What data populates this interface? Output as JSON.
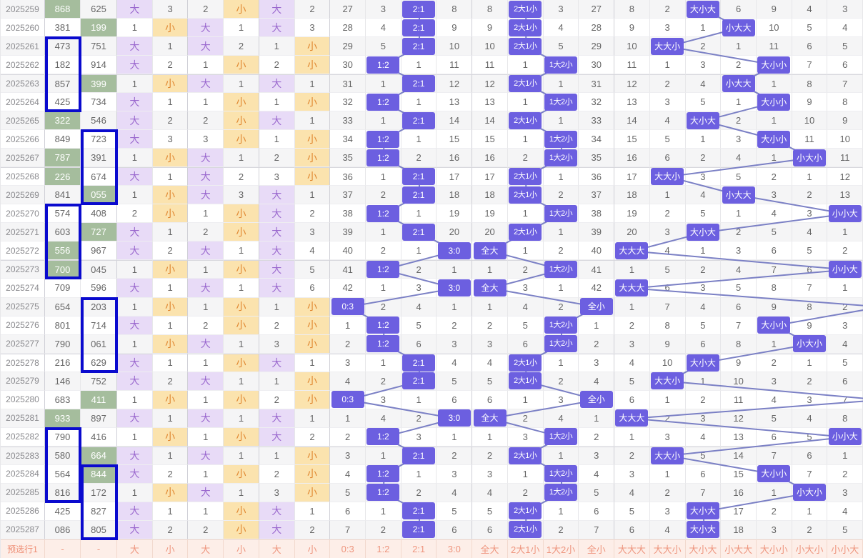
{
  "colors": {
    "hit_pill": "#6c5fe0",
    "big_cell_bg": "#e8dbf7",
    "big_text": "#9a68ce",
    "small_cell_bg": "#fbe3ae",
    "small_text": "#e0862f",
    "green_cell_bg": "#a5bd9d",
    "selection_border": "#0a0ace",
    "connector_line": "#7b80c5",
    "prediction_row_bg": "#fdeee8",
    "prediction_row_text": "#ee957e",
    "stripe_bg": "#f5f5f6"
  },
  "table": {
    "sections": {
      "six_labels": [
        "大",
        "小",
        "大",
        "小",
        "大",
        "小"
      ],
      "ratio_labels": [
        "0:3",
        "1:2",
        "2:1",
        "3:0"
      ],
      "group_labels": [
        "全大",
        "2大1小",
        "1大2小",
        "全小"
      ],
      "pattern_labels": [
        "大大大",
        "大大小",
        "大小大",
        "小大大",
        "大小小",
        "小大小",
        "小小大"
      ]
    },
    "prediction_row": {
      "label": "预选行1",
      "n1": "-",
      "n2": "-"
    },
    "highlight_boxes": [
      {
        "col": "n1",
        "from": 2,
        "to": 5
      },
      {
        "col": "n2",
        "from": 7,
        "to": 10
      },
      {
        "col": "n1",
        "from": 11,
        "to": 14
      },
      {
        "col": "n2",
        "from": 16,
        "to": 19
      },
      {
        "col": "n1",
        "from": 23,
        "to": 26
      },
      {
        "col": "n2",
        "from": 25,
        "to": 28
      }
    ],
    "rows": [
      {
        "p": "2025259",
        "n1": "868",
        "h1": true,
        "n2": "625",
        "h2": false,
        "six": [
          "大",
          3,
          2,
          "小",
          "大",
          2
        ],
        "r": [
          27,
          3,
          null,
          8
        ],
        "rh": 2,
        "g": [
          8,
          null,
          3,
          27
        ],
        "gh": 1,
        "pt": [
          8,
          2,
          null,
          6,
          9,
          4,
          3
        ],
        "ph": 2
      },
      {
        "p": "2025260",
        "n1": "381",
        "h1": false,
        "n2": "199",
        "h2": true,
        "six": [
          1,
          "小",
          "大",
          1,
          "大",
          3
        ],
        "r": [
          28,
          4,
          null,
          9
        ],
        "rh": 2,
        "g": [
          9,
          null,
          4,
          28
        ],
        "gh": 1,
        "pt": [
          9,
          3,
          1,
          null,
          10,
          5,
          4
        ],
        "ph": 3
      },
      {
        "p": "2025261",
        "n1": "473",
        "h1": false,
        "n2": "751",
        "h2": false,
        "six": [
          "大",
          1,
          "大",
          2,
          1,
          "小"
        ],
        "r": [
          29,
          5,
          null,
          10
        ],
        "rh": 2,
        "g": [
          10,
          null,
          5,
          29
        ],
        "gh": 1,
        "pt": [
          10,
          null,
          2,
          1,
          11,
          6,
          5
        ],
        "ph": 1
      },
      {
        "p": "2025262",
        "n1": "182",
        "h1": false,
        "n2": "914",
        "h2": false,
        "six": [
          "大",
          2,
          1,
          "小",
          2,
          "小"
        ],
        "r": [
          30,
          null,
          1,
          11
        ],
        "rh": 1,
        "g": [
          11,
          1,
          null,
          30
        ],
        "gh": 2,
        "pt": [
          11,
          1,
          3,
          2,
          null,
          7,
          6
        ],
        "ph": 4
      },
      {
        "p": "2025263",
        "n1": "857",
        "h1": false,
        "n2": "399",
        "h2": true,
        "six": [
          1,
          "小",
          "大",
          1,
          "大",
          1
        ],
        "r": [
          31,
          1,
          null,
          12
        ],
        "rh": 2,
        "g": [
          12,
          null,
          1,
          31
        ],
        "gh": 1,
        "pt": [
          12,
          2,
          4,
          null,
          1,
          8,
          7
        ],
        "ph": 3
      },
      {
        "p": "2025264",
        "n1": "425",
        "h1": false,
        "n2": "734",
        "h2": false,
        "six": [
          "大",
          1,
          1,
          "小",
          1,
          "小"
        ],
        "r": [
          32,
          null,
          1,
          13
        ],
        "rh": 1,
        "g": [
          13,
          1,
          null,
          32
        ],
        "gh": 2,
        "pt": [
          13,
          3,
          5,
          1,
          null,
          9,
          8
        ],
        "ph": 4
      },
      {
        "p": "2025265",
        "n1": "322",
        "h1": true,
        "n2": "546",
        "h2": false,
        "six": [
          "大",
          2,
          2,
          "小",
          "大",
          1
        ],
        "r": [
          33,
          1,
          null,
          14
        ],
        "rh": 2,
        "g": [
          14,
          null,
          1,
          33
        ],
        "gh": 1,
        "pt": [
          14,
          4,
          null,
          2,
          1,
          10,
          9
        ],
        "ph": 2
      },
      {
        "p": "2025266",
        "n1": "849",
        "h1": false,
        "n2": "723",
        "h2": false,
        "six": [
          "大",
          3,
          3,
          "小",
          1,
          "小"
        ],
        "r": [
          34,
          null,
          1,
          15
        ],
        "rh": 1,
        "g": [
          15,
          1,
          null,
          34
        ],
        "gh": 2,
        "pt": [
          15,
          5,
          1,
          3,
          null,
          11,
          10
        ],
        "ph": 4
      },
      {
        "p": "2025267",
        "n1": "787",
        "h1": true,
        "n2": "391",
        "h2": false,
        "six": [
          1,
          "小",
          "大",
          1,
          2,
          "小"
        ],
        "r": [
          35,
          null,
          2,
          16
        ],
        "rh": 1,
        "g": [
          16,
          2,
          null,
          35
        ],
        "gh": 2,
        "pt": [
          16,
          6,
          2,
          4,
          1,
          null,
          11
        ],
        "ph": 5
      },
      {
        "p": "2025268",
        "n1": "226",
        "h1": true,
        "n2": "674",
        "h2": false,
        "six": [
          "大",
          1,
          "大",
          2,
          3,
          "小"
        ],
        "r": [
          36,
          1,
          null,
          17
        ],
        "rh": 2,
        "g": [
          17,
          null,
          1,
          36
        ],
        "gh": 1,
        "pt": [
          17,
          null,
          3,
          5,
          2,
          1,
          12
        ],
        "ph": 1
      },
      {
        "p": "2025269",
        "n1": "841",
        "h1": false,
        "n2": "055",
        "h2": true,
        "six": [
          1,
          "小",
          "大",
          3,
          "大",
          1
        ],
        "r": [
          37,
          2,
          null,
          18
        ],
        "rh": 2,
        "g": [
          18,
          null,
          2,
          37
        ],
        "gh": 1,
        "pt": [
          18,
          1,
          4,
          null,
          3,
          2,
          13
        ],
        "ph": 3
      },
      {
        "p": "2025270",
        "n1": "574",
        "h1": false,
        "n2": "408",
        "h2": false,
        "six": [
          2,
          "小",
          1,
          "小",
          "大",
          2
        ],
        "r": [
          38,
          null,
          1,
          19
        ],
        "rh": 1,
        "g": [
          19,
          1,
          null,
          38
        ],
        "gh": 2,
        "pt": [
          19,
          2,
          5,
          1,
          4,
          3,
          null
        ],
        "ph": 6
      },
      {
        "p": "2025271",
        "n1": "603",
        "h1": false,
        "n2": "727",
        "h2": true,
        "six": [
          "大",
          1,
          2,
          "小",
          "大",
          3
        ],
        "r": [
          39,
          1,
          null,
          20
        ],
        "rh": 2,
        "g": [
          20,
          null,
          1,
          39
        ],
        "gh": 1,
        "pt": [
          20,
          3,
          null,
          2,
          5,
          4,
          1
        ],
        "ph": 2
      },
      {
        "p": "2025272",
        "n1": "556",
        "h1": true,
        "n2": "967",
        "h2": false,
        "six": [
          "大",
          2,
          "大",
          1,
          "大",
          4
        ],
        "r": [
          40,
          2,
          1,
          null
        ],
        "rh": 3,
        "g": [
          null,
          1,
          2,
          40
        ],
        "gh": 0,
        "pt": [
          null,
          4,
          1,
          3,
          6,
          5,
          2
        ],
        "ph": 0
      },
      {
        "p": "2025273",
        "n1": "700",
        "h1": true,
        "n2": "045",
        "h2": false,
        "six": [
          1,
          "小",
          1,
          "小",
          "大",
          5
        ],
        "r": [
          41,
          null,
          2,
          1
        ],
        "rh": 1,
        "g": [
          1,
          2,
          null,
          41
        ],
        "gh": 2,
        "pt": [
          1,
          5,
          2,
          4,
          7,
          6,
          null
        ],
        "ph": 6
      },
      {
        "p": "2025274",
        "n1": "709",
        "h1": false,
        "n2": "596",
        "h2": false,
        "six": [
          "大",
          1,
          "大",
          1,
          "大",
          6
        ],
        "r": [
          42,
          1,
          3,
          null
        ],
        "rh": 3,
        "g": [
          null,
          3,
          1,
          42
        ],
        "gh": 0,
        "pt": [
          null,
          6,
          3,
          5,
          8,
          7,
          1
        ],
        "ph": 0
      },
      {
        "p": "2025275",
        "n1": "654",
        "h1": false,
        "n2": "203",
        "h2": false,
        "six": [
          1,
          "小",
          1,
          "小",
          1,
          "小"
        ],
        "r": [
          null,
          2,
          4,
          1
        ],
        "rh": 0,
        "g": [
          1,
          4,
          2,
          null
        ],
        "gh": 3,
        "pt": [
          1,
          7,
          4,
          6,
          9,
          8,
          2
        ],
        "ph": 7
      },
      {
        "p": "2025276",
        "n1": "801",
        "h1": false,
        "n2": "714",
        "h2": false,
        "six": [
          "大",
          1,
          2,
          "小",
          2,
          "小"
        ],
        "r": [
          1,
          null,
          5,
          2
        ],
        "rh": 1,
        "g": [
          2,
          5,
          null,
          1
        ],
        "gh": 2,
        "pt": [
          2,
          8,
          5,
          7,
          null,
          9,
          3
        ],
        "ph": 4
      },
      {
        "p": "2025277",
        "n1": "790",
        "h1": false,
        "n2": "061",
        "h2": false,
        "six": [
          1,
          "小",
          "大",
          1,
          3,
          "小"
        ],
        "r": [
          2,
          null,
          6,
          3
        ],
        "rh": 1,
        "g": [
          3,
          6,
          null,
          2
        ],
        "gh": 2,
        "pt": [
          3,
          9,
          6,
          8,
          1,
          null,
          4
        ],
        "ph": 5
      },
      {
        "p": "2025278",
        "n1": "216",
        "h1": false,
        "n2": "629",
        "h2": false,
        "six": [
          "大",
          1,
          1,
          "小",
          "大",
          1
        ],
        "r": [
          3,
          1,
          null,
          4
        ],
        "rh": 2,
        "g": [
          4,
          null,
          1,
          3
        ],
        "gh": 1,
        "pt": [
          4,
          10,
          null,
          9,
          2,
          1,
          5
        ],
        "ph": 2
      },
      {
        "p": "2025279",
        "n1": "146",
        "h1": false,
        "n2": "752",
        "h2": false,
        "six": [
          "大",
          2,
          "大",
          1,
          1,
          "小"
        ],
        "r": [
          4,
          2,
          null,
          5
        ],
        "rh": 2,
        "g": [
          5,
          null,
          2,
          4
        ],
        "gh": 1,
        "pt": [
          5,
          null,
          1,
          10,
          3,
          2,
          6
        ],
        "ph": 1
      },
      {
        "p": "2025280",
        "n1": "683",
        "h1": false,
        "n2": "411",
        "h2": true,
        "six": [
          1,
          "小",
          1,
          "小",
          2,
          "小"
        ],
        "r": [
          null,
          3,
          1,
          6
        ],
        "rh": 0,
        "g": [
          6,
          1,
          3,
          null
        ],
        "gh": 3,
        "pt": [
          6,
          1,
          2,
          11,
          4,
          3,
          7
        ],
        "ph": 7
      },
      {
        "p": "2025281",
        "n1": "933",
        "h1": true,
        "n2": "897",
        "h2": false,
        "six": [
          "大",
          1,
          "大",
          1,
          "大",
          1
        ],
        "r": [
          1,
          4,
          2,
          null
        ],
        "rh": 3,
        "g": [
          null,
          2,
          4,
          1
        ],
        "gh": 0,
        "pt": [
          null,
          2,
          3,
          12,
          5,
          4,
          8
        ],
        "ph": 0
      },
      {
        "p": "2025282",
        "n1": "790",
        "h1": false,
        "n2": "416",
        "h2": false,
        "six": [
          1,
          "小",
          1,
          "小",
          "大",
          2
        ],
        "r": [
          2,
          null,
          3,
          1
        ],
        "rh": 1,
        "g": [
          1,
          3,
          null,
          2
        ],
        "gh": 2,
        "pt": [
          1,
          3,
          4,
          13,
          6,
          5,
          null
        ],
        "ph": 6
      },
      {
        "p": "2025283",
        "n1": "580",
        "h1": false,
        "n2": "664",
        "h2": true,
        "six": [
          "大",
          1,
          "大",
          1,
          1,
          "小"
        ],
        "r": [
          3,
          1,
          null,
          2
        ],
        "rh": 2,
        "g": [
          2,
          null,
          1,
          3
        ],
        "gh": 1,
        "pt": [
          2,
          null,
          5,
          14,
          7,
          6,
          1
        ],
        "ph": 1
      },
      {
        "p": "2025284",
        "n1": "564",
        "h1": false,
        "n2": "844",
        "h2": true,
        "six": [
          "大",
          2,
          1,
          "小",
          2,
          "小"
        ],
        "r": [
          4,
          null,
          1,
          3
        ],
        "rh": 1,
        "g": [
          3,
          1,
          null,
          4
        ],
        "gh": 2,
        "pt": [
          3,
          1,
          6,
          15,
          null,
          7,
          2
        ],
        "ph": 4
      },
      {
        "p": "2025285",
        "n1": "816",
        "h1": false,
        "n2": "172",
        "h2": false,
        "six": [
          1,
          "小",
          "大",
          1,
          3,
          "小"
        ],
        "r": [
          5,
          null,
          2,
          4
        ],
        "rh": 1,
        "g": [
          4,
          2,
          null,
          5
        ],
        "gh": 2,
        "pt": [
          4,
          2,
          7,
          16,
          1,
          null,
          3
        ],
        "ph": 5
      },
      {
        "p": "2025286",
        "n1": "425",
        "h1": false,
        "n2": "827",
        "h2": false,
        "six": [
          "大",
          1,
          1,
          "小",
          "大",
          1
        ],
        "r": [
          6,
          1,
          null,
          5
        ],
        "rh": 2,
        "g": [
          5,
          null,
          1,
          6
        ],
        "gh": 1,
        "pt": [
          5,
          3,
          null,
          17,
          2,
          1,
          4
        ],
        "ph": 2
      },
      {
        "p": "2025287",
        "n1": "086",
        "h1": false,
        "n2": "805",
        "h2": false,
        "six": [
          "大",
          2,
          2,
          "小",
          "大",
          2
        ],
        "r": [
          7,
          2,
          null,
          6
        ],
        "rh": 2,
        "g": [
          6,
          null,
          2,
          7
        ],
        "gh": 1,
        "pt": [
          6,
          4,
          null,
          18,
          3,
          2,
          5
        ],
        "ph": 2
      }
    ]
  }
}
